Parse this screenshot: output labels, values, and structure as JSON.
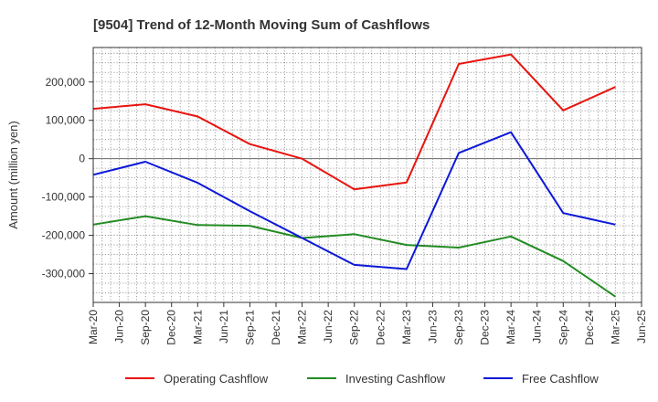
{
  "chart_data": {
    "type": "line",
    "title": "[9504]  Trend of 12-Month Moving Sum of Cashflows",
    "ylabel": "Amount (million yen)",
    "xlabel": "",
    "x_ticks": [
      "Mar-20",
      "Jun-20",
      "Sep-20",
      "Dec-20",
      "Mar-21",
      "Jun-21",
      "Sep-21",
      "Dec-21",
      "Mar-22",
      "Jun-22",
      "Sep-22",
      "Dec-22",
      "Mar-23",
      "Jun-23",
      "Sep-23",
      "Dec-23",
      "Mar-24",
      "Jun-24",
      "Sep-24",
      "Dec-24",
      "Mar-25",
      "Jun-25"
    ],
    "y_ticks": [
      200000,
      100000,
      0,
      -100000,
      -200000,
      -300000
    ],
    "y_tick_labels": [
      "200,000",
      "100,000",
      "0",
      "-100,000",
      "-200,000",
      "-300,000"
    ],
    "ylim": [
      -375000,
      290000
    ],
    "grid": true,
    "legend_position": "bottom",
    "x": [
      "Mar-20",
      "Sep-20",
      "Mar-21",
      "Sep-21",
      "Mar-22",
      "Sep-22",
      "Mar-23",
      "Sep-23",
      "Mar-24",
      "Sep-24",
      "Mar-25"
    ],
    "series": [
      {
        "name": "Operating Cashflow",
        "color": "#e8130e",
        "values": [
          130000,
          142000,
          110000,
          38000,
          0,
          -80000,
          -62000,
          247000,
          272000,
          126000,
          187000
        ]
      },
      {
        "name": "Investing Cashflow",
        "color": "#228b22",
        "values": [
          -172000,
          -150000,
          -173000,
          -175000,
          -207000,
          -197000,
          -225000,
          -232000,
          -203000,
          -267000,
          -360000
        ]
      },
      {
        "name": "Free Cashflow",
        "color": "#0c18d8",
        "values": [
          -42000,
          -8000,
          -63000,
          -137000,
          -207000,
          -277000,
          -288000,
          15000,
          69000,
          -142000,
          -172000
        ]
      }
    ]
  }
}
